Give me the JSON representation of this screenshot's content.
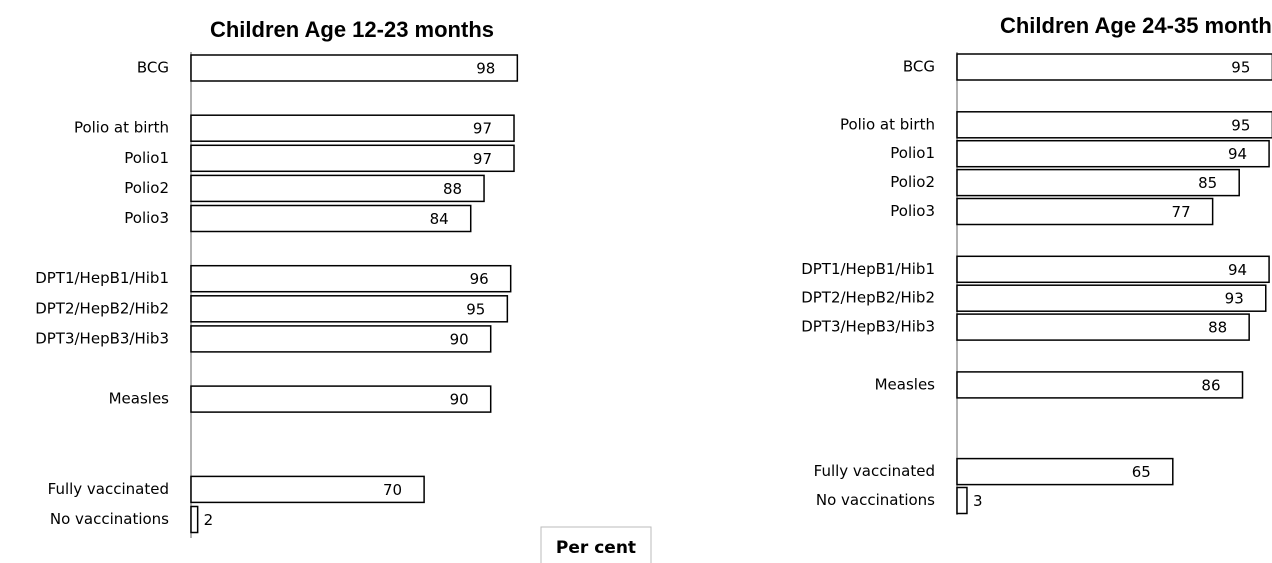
{
  "chart_data": [
    {
      "type": "bar",
      "orientation": "horizontal",
      "title": "Children Age 12-23 months",
      "categories": [
        "BCG",
        null,
        "Polio at birth",
        "Polio1",
        "Polio2",
        "Polio3",
        null,
        "DPT1/HepB1/Hib1",
        "DPT2/HepB2/Hib2",
        "DPT3/HepB3/Hib3",
        null,
        "Measles",
        null,
        null,
        "Fully vaccinated",
        "No vaccinations"
      ],
      "values": [
        98,
        null,
        97,
        97,
        88,
        84,
        null,
        96,
        95,
        90,
        null,
        90,
        null,
        null,
        70,
        2
      ],
      "color": "#ffffff",
      "xlim": [
        0,
        100
      ]
    },
    {
      "type": "bar",
      "orientation": "horizontal",
      "title": "Children Age 24-35 months",
      "categories": [
        "BCG",
        null,
        "Polio at birth",
        "Polio1",
        "Polio2",
        "Polio3",
        null,
        "DPT1/HepB1/Hib1",
        "DPT2/HepB2/Hib2",
        "DPT3/HepB3/Hib3",
        null,
        "Measles",
        null,
        null,
        "Fully vaccinated",
        "No vaccinations"
      ],
      "values": [
        95,
        null,
        95,
        94,
        85,
        77,
        null,
        94,
        93,
        88,
        null,
        86,
        null,
        null,
        65,
        3
      ],
      "color": "#ffffff",
      "xlim": [
        0,
        100
      ]
    }
  ],
  "axis_label": "Per cent"
}
